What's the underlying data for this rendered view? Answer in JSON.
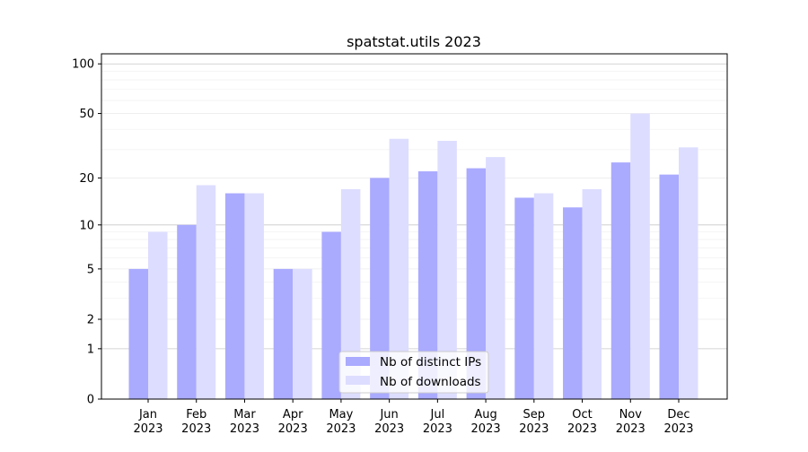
{
  "chart_data": {
    "type": "bar",
    "title": "spatstat.utils 2023",
    "xlabel": "",
    "ylabel": "",
    "yscale": "log1p",
    "ylim": [
      0,
      115
    ],
    "yticks": [
      0,
      1,
      2,
      5,
      10,
      20,
      50,
      100
    ],
    "ytick_labels": [
      "0",
      "1",
      "2",
      "5",
      "10",
      "20",
      "50",
      "100"
    ],
    "grid": true,
    "legend_position": "bottom-center",
    "categories": [
      [
        "Jan",
        "2023"
      ],
      [
        "Feb",
        "2023"
      ],
      [
        "Mar",
        "2023"
      ],
      [
        "Apr",
        "2023"
      ],
      [
        "May",
        "2023"
      ],
      [
        "Jun",
        "2023"
      ],
      [
        "Jul",
        "2023"
      ],
      [
        "Aug",
        "2023"
      ],
      [
        "Sep",
        "2023"
      ],
      [
        "Oct",
        "2023"
      ],
      [
        "Nov",
        "2023"
      ],
      [
        "Dec",
        "2023"
      ]
    ],
    "series": [
      {
        "name": "Nb of distinct IPs",
        "color": "#aaaaff",
        "values": [
          5,
          10,
          16,
          5,
          9,
          20,
          22,
          23,
          15,
          13,
          25,
          21
        ]
      },
      {
        "name": "Nb of downloads",
        "color": "#ddddff",
        "values": [
          9,
          18,
          16,
          5,
          17,
          35,
          34,
          27,
          16,
          17,
          50,
          31
        ]
      }
    ]
  }
}
